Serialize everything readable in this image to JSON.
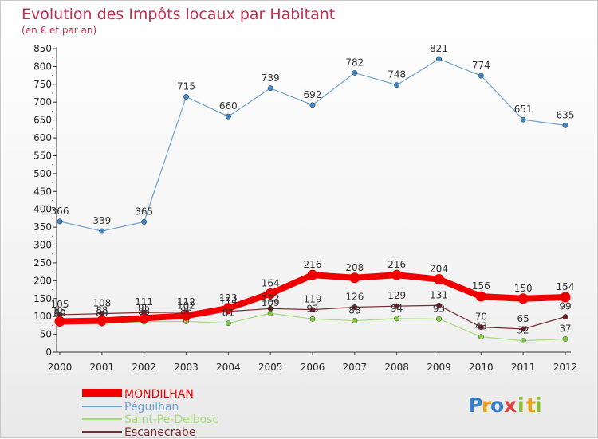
{
  "chart_data": {
    "type": "line",
    "title": "Evolution des Impôts locaux par Habitant",
    "subtitle": "(en € et par an)",
    "categories": [
      "2000",
      "2001",
      "2002",
      "2003",
      "2004",
      "2005",
      "2006",
      "2007",
      "2008",
      "2009",
      "2010",
      "2011",
      "2012"
    ],
    "ylim": [
      0,
      850
    ],
    "yticks": [
      0,
      50,
      100,
      150,
      200,
      250,
      300,
      350,
      400,
      450,
      500,
      550,
      600,
      650,
      700,
      750,
      800,
      850
    ],
    "grid": false,
    "legend_position": "bottom-left",
    "series": [
      {
        "name": "Péguilhan",
        "color": "#6aa0d0",
        "marker": "#3f86c6",
        "values": [
          366,
          339,
          365,
          715,
          660,
          739,
          692,
          782,
          748,
          821,
          774,
          651,
          635
        ],
        "labels": [
          "366",
          "339",
          "365",
          "715",
          "660",
          "739",
          "692",
          "782",
          "748",
          "821",
          "774",
          "651",
          "635"
        ]
      },
      {
        "name": "Saint-Pé-Delbosc",
        "color": "#a6dc78",
        "marker": "#86cc40",
        "values": [
          80,
          80,
          85,
          86,
          81,
          109,
          93,
          88,
          94,
          93,
          43,
          32,
          37
        ],
        "labels": [
          "80",
          "80",
          "85",
          "86",
          "81",
          "109",
          "93",
          "88",
          "94",
          "93",
          "43",
          "32",
          "37"
        ]
      },
      {
        "name": "Escanecrabe",
        "color": "#7a2a32",
        "marker": "#6b1e26",
        "values": [
          105,
          108,
          111,
          112,
          114,
          122,
          119,
          126,
          129,
          131,
          70,
          65,
          99
        ],
        "labels": [
          "105",
          "108",
          "111",
          "112",
          "114",
          "122",
          "119",
          "126",
          "129",
          "131",
          "70",
          "65",
          "99"
        ]
      },
      {
        "name": "MONDILHAN",
        "color": "#f00000",
        "marker": "#f00000",
        "values": [
          86,
          88,
          95,
          102,
          123,
          164,
          216,
          208,
          216,
          204,
          156,
          150,
          154
        ],
        "labels": [
          "86",
          "88",
          "95",
          "102",
          "123",
          "164",
          "216",
          "208",
          "216",
          "204",
          "156",
          "150",
          "154"
        ]
      }
    ]
  },
  "legend": [
    {
      "name": "MONDILHAN",
      "color": "#f00000"
    },
    {
      "name": "Péguilhan",
      "color": "#6aa0d0"
    },
    {
      "name": "Saint-Pé-Delbosc",
      "color": "#a6dc78"
    },
    {
      "name": "Escanecrabe",
      "color": "#7a2a32"
    }
  ],
  "logo": {
    "letters": [
      "P",
      "r",
      "o",
      "x",
      "i",
      "t",
      "i"
    ],
    "colors": [
      "#3a7ec8",
      "#e8a020",
      "#3a7ec8",
      "#e04040",
      "#88bb30",
      "#e8a020",
      "#88bb30"
    ]
  }
}
